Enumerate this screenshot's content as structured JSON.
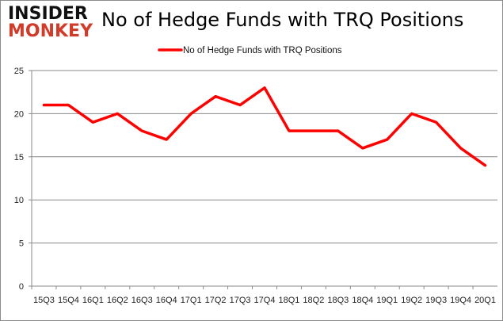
{
  "logo": {
    "line1": "INSIDER",
    "line2": "MONKEY"
  },
  "chart_data": {
    "type": "line",
    "title": "No of Hedge Funds with TRQ Positions",
    "categories": [
      "15Q3",
      "15Q4",
      "16Q1",
      "16Q2",
      "16Q3",
      "16Q4",
      "17Q1",
      "17Q2",
      "17Q3",
      "17Q4",
      "18Q1",
      "18Q2",
      "18Q3",
      "18Q4",
      "19Q1",
      "19Q2",
      "19Q3",
      "19Q4",
      "20Q1"
    ],
    "series": [
      {
        "name": "No of Hedge Funds with TRQ Positions",
        "color": "#ff0000",
        "values": [
          21,
          21,
          19,
          20,
          18,
          17,
          20,
          22,
          21,
          23,
          18,
          18,
          18,
          16,
          17,
          20,
          19,
          16,
          14
        ]
      }
    ],
    "ylim": [
      0,
      25
    ],
    "yticks": [
      0,
      5,
      10,
      15,
      20,
      25
    ],
    "grid": true,
    "legend": "top-center",
    "xlabel": "",
    "ylabel": ""
  }
}
